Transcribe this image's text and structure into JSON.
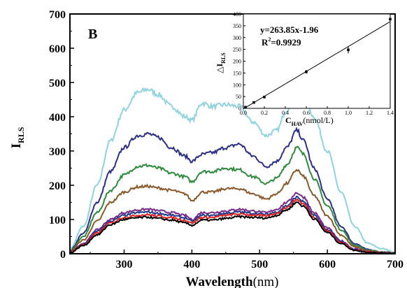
{
  "chart_data": [
    {
      "type": "line",
      "panel_label": "B",
      "xlabel": "Wavelength",
      "xlabel_unit": "(nm)",
      "ylabel": "I",
      "ylabel_sub": "RLS",
      "xlim": [
        220,
        700
      ],
      "ylim": [
        0,
        700
      ],
      "x_ticks": [
        300,
        400,
        500,
        600,
        700
      ],
      "y_ticks": [
        0,
        100,
        200,
        300,
        400,
        500,
        600,
        700
      ],
      "grid": false,
      "legend": "none",
      "x": [
        220,
        240,
        260,
        280,
        300,
        320,
        335,
        350,
        370,
        390,
        400,
        415,
        430,
        450,
        470,
        490,
        510,
        525,
        540,
        555,
        565,
        580,
        600,
        620,
        640,
        660,
        680,
        700
      ],
      "series": [
        {
          "color": "#8fd3e0",
          "values": [
            15,
            80,
            200,
            330,
            420,
            470,
            480,
            465,
            430,
            400,
            390,
            440,
            430,
            435,
            430,
            385,
            345,
            360,
            420,
            495,
            470,
            400,
            300,
            180,
            80,
            30,
            15,
            5
          ]
        },
        {
          "color": "#2b2f8a",
          "values": [
            10,
            60,
            150,
            240,
            310,
            345,
            350,
            340,
            310,
            285,
            270,
            290,
            295,
            310,
            320,
            285,
            255,
            270,
            310,
            360,
            330,
            250,
            160,
            80,
            30,
            12,
            5,
            2
          ]
        },
        {
          "color": "#2e8b3d",
          "values": [
            8,
            50,
            120,
            185,
            230,
            255,
            258,
            250,
            235,
            225,
            210,
            240,
            240,
            250,
            245,
            225,
            205,
            220,
            260,
            310,
            290,
            220,
            140,
            70,
            25,
            10,
            5,
            2
          ]
        },
        {
          "color": "#8b5a2b",
          "values": [
            7,
            40,
            95,
            150,
            180,
            195,
            197,
            192,
            185,
            175,
            155,
            180,
            180,
            190,
            190,
            175,
            160,
            175,
            205,
            245,
            225,
            170,
            110,
            55,
            20,
            8,
            4,
            2
          ]
        },
        {
          "color": "#7a2a8a",
          "values": [
            5,
            30,
            70,
            100,
            120,
            128,
            130,
            126,
            120,
            112,
            100,
            120,
            120,
            125,
            130,
            125,
            120,
            130,
            150,
            178,
            165,
            120,
            75,
            38,
            14,
            6,
            3,
            1
          ]
        },
        {
          "color": "#1e3a8a",
          "values": [
            4,
            28,
            65,
            95,
            112,
            120,
            122,
            118,
            112,
            105,
            95,
            112,
            112,
            118,
            122,
            118,
            115,
            122,
            140,
            165,
            152,
            112,
            70,
            35,
            12,
            5,
            2,
            1
          ]
        },
        {
          "color": "#e02020",
          "values": [
            4,
            26,
            60,
            90,
            106,
            112,
            114,
            110,
            105,
            98,
            90,
            106,
            106,
            112,
            116,
            113,
            110,
            118,
            135,
            158,
            145,
            107,
            66,
            33,
            11,
            5,
            2,
            1
          ]
        },
        {
          "color": "#000000",
          "values": [
            3,
            24,
            55,
            85,
            100,
            105,
            107,
            103,
            98,
            90,
            83,
            98,
            98,
            103,
            108,
            106,
            104,
            112,
            128,
            150,
            138,
            102,
            62,
            30,
            10,
            4,
            2,
            1
          ]
        }
      ]
    },
    {
      "type": "scatter",
      "xlabel": "C",
      "xlabel_sub": "HAV",
      "xlabel_unit": "(nmol/L)",
      "ylabel": "△I",
      "ylabel_sub": "RLS",
      "xlim": [
        0,
        1.4
      ],
      "ylim": [
        0,
        400
      ],
      "x_ticks": [
        0.0,
        0.2,
        0.4,
        0.6,
        0.8,
        1.0,
        1.2,
        1.4
      ],
      "x_tick_labels": [
        "0.0",
        "0.2",
        "0.4",
        "0.6",
        "0.8",
        "1.0",
        "1.2",
        "1.4"
      ],
      "y_ticks": [
        0,
        50,
        100,
        150,
        200,
        250,
        300,
        350,
        400
      ],
      "equation": "y=263.85x-1.96",
      "r2_label": "R",
      "r2_sup": "2",
      "r2_value": "=0.9929",
      "fit": {
        "slope": 263.85,
        "intercept": -1.96
      },
      "x": [
        0.02,
        0.1,
        0.2,
        0.6,
        1.0,
        1.4
      ],
      "values": [
        5,
        25,
        48,
        155,
        248,
        378
      ],
      "errors": [
        3,
        4,
        5,
        8,
        15,
        15
      ]
    }
  ]
}
